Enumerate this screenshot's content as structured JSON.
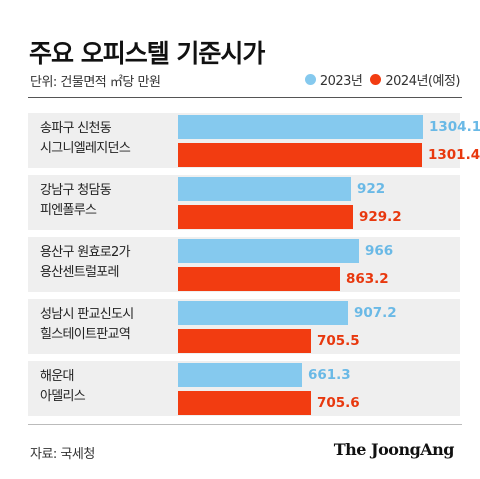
{
  "header": {
    "title": "주요 오피스텔 기준시가",
    "unit": "단위: 건물면적 ㎡당 만원",
    "source": "자료: 국세청",
    "logo": "The JoongAng"
  },
  "colors": {
    "2023": "#85c9ee",
    "2024": "#f23c11"
  },
  "chart_data": {
    "type": "bar",
    "orientation": "horizontal",
    "title": "주요 오피스텔 기준시가",
    "unit": "단위: 건물면적 ㎡당 만원",
    "categories": [
      [
        "송파구 신천동",
        "시그니엘레지던스"
      ],
      [
        "강남구 청담동",
        "피엔폴루스"
      ],
      [
        "용산구 원효로2가",
        "용산센트럴포레"
      ],
      [
        "성남시 판교신도시",
        "힐스테이트판교역"
      ],
      [
        "해운대",
        "아델리스"
      ]
    ],
    "series": [
      {
        "name": "2023년",
        "values": [
          1304.1,
          922,
          966,
          907.2,
          661.3
        ],
        "labels": [
          "1304.1",
          "922",
          "966",
          "907.2",
          "661.3"
        ]
      },
      {
        "name": "2024년(예정)",
        "values": [
          1301.4,
          929.2,
          863.2,
          705.5,
          705.6
        ],
        "labels": [
          "1301.4",
          "929.2",
          "863.2",
          "705.5",
          "705.6"
        ]
      }
    ],
    "legend": "top-right",
    "grid": false
  }
}
